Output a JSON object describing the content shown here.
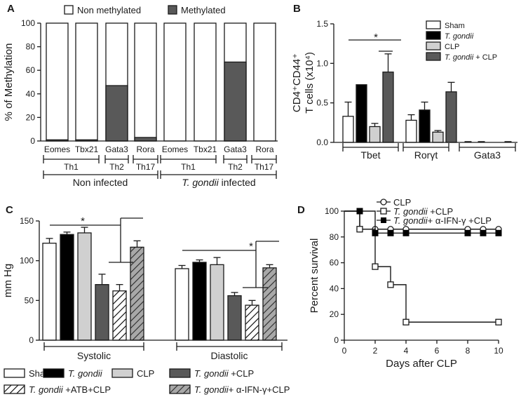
{
  "chart_data": [
    {
      "panel": "A",
      "type": "bar",
      "stacked": true,
      "title": "",
      "ylabel": "% of Methylation",
      "ylim": [
        0,
        100
      ],
      "yticks": [
        "0",
        "20",
        "40",
        "60",
        "80",
        "100"
      ],
      "legend": [
        "Non methylated",
        "Methylated"
      ],
      "categories": [
        "Eomes",
        "Tbx21",
        "Gata3",
        "Rora",
        "Eomes",
        "Tbx21",
        "Gata3",
        "Rora"
      ],
      "series": [
        {
          "name": "Methylated",
          "color": "#595959",
          "values": [
            1,
            1,
            47,
            3,
            0,
            0,
            67,
            0
          ]
        },
        {
          "name": "Non methylated",
          "color": "#ffffff",
          "values": [
            99,
            99,
            53,
            97,
            100,
            100,
            33,
            100
          ]
        }
      ],
      "subgroups": [
        {
          "label": "Th1"
        },
        {
          "label": "Th2"
        },
        {
          "label": "Th17"
        },
        {
          "label": "Th1"
        },
        {
          "label": "Th2"
        },
        {
          "label": "Th17"
        }
      ],
      "groups": [
        {
          "label": "Non infected"
        },
        {
          "label_italic": "T. gondii",
          "label": " infected"
        }
      ]
    },
    {
      "panel": "B",
      "type": "bar",
      "ylabel_line1": "CD4⁺CD44⁺",
      "ylabel_line2": "T cells (x10⁴)",
      "ylim": [
        0,
        1.5
      ],
      "yticks": [
        "0.0",
        "0.5",
        "1.0",
        "1.5"
      ],
      "categories": [
        "Tbet",
        "Rorγt",
        "Gata3"
      ],
      "series": [
        {
          "name": "Sham",
          "color": "#ffffff",
          "values": [
            0.33,
            0.28,
            0.0
          ],
          "err": [
            0.18,
            0.07,
            0.01
          ]
        },
        {
          "name": "T. gondii",
          "italic": true,
          "color": "#000000",
          "values": [
            0.73,
            0.41,
            0.0
          ],
          "err": [
            0.0,
            0.1,
            0.01
          ]
        },
        {
          "name": "CLP",
          "color": "#d0d0d0",
          "values": [
            0.2,
            0.13,
            0.0
          ],
          "err": [
            0.04,
            0.02,
            0.0
          ]
        },
        {
          "name": "T. gondii + CLP",
          "italic_part": "T. gondii",
          "rest": " + CLP",
          "color": "#595959",
          "values": [
            0.89,
            0.64,
            0.0
          ],
          "err": [
            0.23,
            0.12,
            0.01
          ]
        }
      ],
      "significance": "*"
    },
    {
      "panel": "C",
      "type": "bar",
      "ylabel": "mm Hg",
      "ylim": [
        0,
        150
      ],
      "yticks": [
        "0",
        "50",
        "100",
        "150"
      ],
      "categories": [
        "Systolic",
        "Diastolic"
      ],
      "series": [
        {
          "name": "Sham",
          "color": "#ffffff",
          "pattern": "none",
          "values": [
            122,
            90
          ],
          "err": [
            6,
            4
          ]
        },
        {
          "name": "T. gondii",
          "color": "#000000",
          "pattern": "none",
          "values": [
            133,
            98
          ],
          "err": [
            3,
            3
          ]
        },
        {
          "name": "CLP",
          "color": "#d0d0d0",
          "pattern": "none",
          "values": [
            135,
            95
          ],
          "err": [
            7,
            9
          ]
        },
        {
          "name": "T. gondii +CLP",
          "color": "#595959",
          "pattern": "none",
          "values": [
            70,
            56
          ],
          "err": [
            13,
            4
          ]
        },
        {
          "name": "T. gondii +ATB+CLP",
          "color": "#ffffff",
          "pattern": "hatch",
          "values": [
            62,
            44
          ],
          "err": [
            8,
            6
          ]
        },
        {
          "name": "T. gondii+ α-IFN-γ+CLP",
          "color": "#9a9a9a",
          "pattern": "hatch",
          "values": [
            117,
            91
          ],
          "err": [
            8,
            4
          ]
        }
      ],
      "significance": [
        "*",
        "*"
      ],
      "legend_entries": [
        {
          "text": "Sham"
        },
        {
          "italic": "T. gondii",
          "text": ""
        },
        {
          "text": "CLP"
        },
        {
          "italic": "T. gondii",
          "text": " +CLP"
        },
        {
          "italic": "T. gondii",
          "text": " +ATB+CLP"
        },
        {
          "italic": "T. gondii",
          "text": "+ α-IFN-γ+CLP"
        }
      ]
    },
    {
      "panel": "D",
      "type": "line",
      "xlabel": "Days after CLP",
      "ylabel": "Percent survival",
      "xlim": [
        0,
        10
      ],
      "ylim": [
        0,
        100
      ],
      "xticks": [
        "0",
        "2",
        "4",
        "6",
        "8",
        "10"
      ],
      "yticks": [
        "0",
        "20",
        "40",
        "60",
        "80",
        "100"
      ],
      "series": [
        {
          "name": "CLP",
          "marker": "circle",
          "steps": [
            [
              0,
              100
            ],
            [
              1,
              86
            ],
            [
              10,
              86
            ]
          ],
          "points": [
            [
              1,
              86
            ],
            [
              2,
              86
            ],
            [
              3,
              86
            ],
            [
              4,
              86
            ],
            [
              8,
              86
            ],
            [
              9,
              86
            ],
            [
              10,
              86
            ]
          ]
        },
        {
          "name": "T. gondii +CLP",
          "italic_part": "T. gondii",
          "rest": " +CLP",
          "marker": "square",
          "steps": [
            [
              0,
              100
            ],
            [
              1,
              86
            ],
            [
              2,
              57
            ],
            [
              3,
              43
            ],
            [
              4,
              14
            ],
            [
              10,
              14
            ]
          ],
          "points": [
            [
              1,
              86
            ],
            [
              2,
              57
            ],
            [
              3,
              43
            ],
            [
              4,
              14
            ],
            [
              10,
              14
            ]
          ]
        },
        {
          "name": "T. gondii+ α-IFN-γ +CLP",
          "italic_part": "T. gondii",
          "rest": "+ α-IFN-γ +CLP",
          "marker": "filled-square",
          "steps": [
            [
              0,
              100
            ],
            [
              1,
              100
            ],
            [
              2,
              83
            ],
            [
              10,
              83
            ]
          ],
          "points": [
            [
              1,
              100
            ],
            [
              2,
              83
            ],
            [
              3,
              83
            ],
            [
              4,
              83
            ],
            [
              8,
              83
            ],
            [
              9,
              83
            ],
            [
              10,
              83
            ]
          ]
        }
      ]
    }
  ],
  "panel_labels": [
    "A",
    "B",
    "C",
    "D"
  ]
}
